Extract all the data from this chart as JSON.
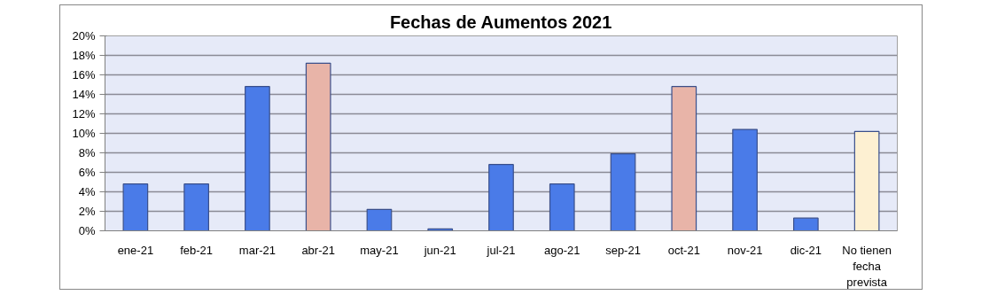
{
  "chart_data": {
    "type": "bar",
    "title": "Fechas de Aumentos 2021",
    "categories": [
      "ene-21",
      "feb-21",
      "mar-21",
      "abr-21",
      "may-21",
      "jun-21",
      "jul-21",
      "ago-21",
      "sep-21",
      "oct-21",
      "nov-21",
      "dic-21",
      "No tienen fecha prevista"
    ],
    "values": [
      4.8,
      4.8,
      14.8,
      17.2,
      2.2,
      0.2,
      6.8,
      4.8,
      7.9,
      14.8,
      10.4,
      1.3,
      10.2
    ],
    "colors": [
      "#4a7be8",
      "#4a7be8",
      "#4a7be8",
      "#e8b4a8",
      "#4a7be8",
      "#4a7be8",
      "#4a7be8",
      "#4a7be8",
      "#4a7be8",
      "#e8b4a8",
      "#4a7be8",
      "#4a7be8",
      "#fdf0d2"
    ],
    "ylim": [
      0,
      20
    ],
    "yticks": [
      {
        "value": 0,
        "label": "0%"
      },
      {
        "value": 2,
        "label": "2%"
      },
      {
        "value": 4,
        "label": "4%"
      },
      {
        "value": 6,
        "label": "6%"
      },
      {
        "value": 8,
        "label": "8%"
      },
      {
        "value": 10,
        "label": "10%"
      },
      {
        "value": 12,
        "label": "12%"
      },
      {
        "value": 14,
        "label": "14%"
      },
      {
        "value": 16,
        "label": "16%"
      },
      {
        "value": 18,
        "label": "18%"
      },
      {
        "value": 20,
        "label": "20%"
      }
    ],
    "grid": "y"
  }
}
